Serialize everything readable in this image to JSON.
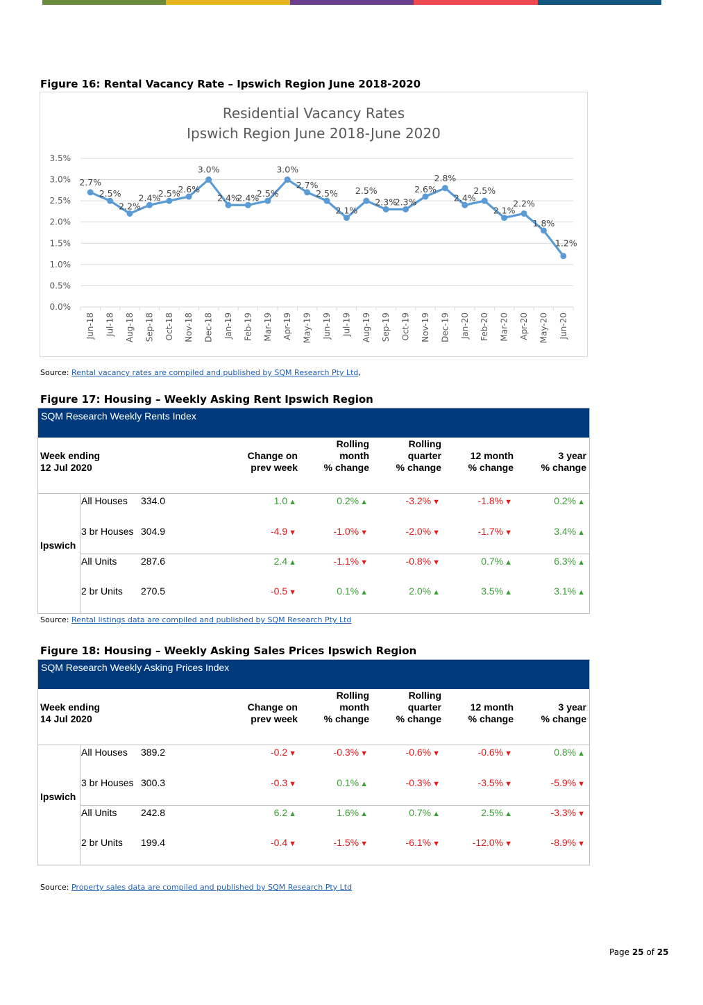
{
  "colors": {
    "topbar": [
      "#6b8a3a",
      "#e7b51e",
      "#6a3f8c",
      "#ef4a4f",
      "#11577f"
    ],
    "line": "#5b9bd5",
    "header_blue": "#003a7d",
    "up": "#3aa035",
    "down": "#e01b1b"
  },
  "figure16": {
    "caption": "Figure 16: Rental Vacancy Rate – Ipswich Region June 2018-2020",
    "source_prefix": "Source: ",
    "source_link": "Rental vacancy rates are compiled and published by SQM Research Pty Ltd",
    "source_suffix": ","
  },
  "chart_data": {
    "type": "line",
    "title": "Residential Vacancy Rates",
    "subtitle": "Ipswich Region June 2018-June 2020",
    "xlabel": "",
    "ylabel": "",
    "ylim": [
      0,
      3.5
    ],
    "yticks": [
      "0.0%",
      "0.5%",
      "1.0%",
      "1.5%",
      "2.0%",
      "2.5%",
      "3.0%",
      "3.5%"
    ],
    "grid": true,
    "categories": [
      "Jun-18",
      "Jul-18",
      "Aug-18",
      "Sep-18",
      "Oct-18",
      "Nov-18",
      "Dec-18",
      "Jan-19",
      "Feb-19",
      "Mar-19",
      "Apr-19",
      "May-19",
      "Jun-19",
      "Jul-19",
      "Aug-19",
      "Sep-19",
      "Oct-19",
      "Nov-19",
      "Dec-19",
      "Jan-20",
      "Feb-20",
      "Mar-20",
      "Apr-20",
      "May-20",
      "Jun-20"
    ],
    "values": [
      2.7,
      2.5,
      2.2,
      2.4,
      2.5,
      2.6,
      3.0,
      2.4,
      2.4,
      2.5,
      3.0,
      2.7,
      2.5,
      2.1,
      2.5,
      2.3,
      2.3,
      2.6,
      2.8,
      2.4,
      2.5,
      2.1,
      2.2,
      1.8,
      1.2
    ],
    "labels": [
      "2.7%",
      "2.5%",
      "2.2%",
      "2.4%",
      "2.5%",
      "2.6%",
      "3.0%",
      "2.4%",
      "2.4%",
      "2.5%",
      "3.0%",
      "2.7%",
      "2.5%",
      "2.1%",
      "2.5%",
      "2.3%",
      "2.3%",
      "2.6%",
      "2.8%",
      "2.4%",
      "2.5%",
      "2.1%",
      "2.2%",
      "1.8%",
      "1.2%"
    ]
  },
  "figure17": {
    "caption": "Figure 17: Housing – Weekly Asking Rent Ipswich Region",
    "table_title": "SQM Research Weekly Rents Index",
    "week_line1": "Week ending",
    "week_line2": "12 Jul 2020",
    "region": "Ipswich",
    "source_prefix": "Source: ",
    "source_link": "Rental listings data are compiled and published by SQM Research Pty Ltd",
    "rows": [
      {
        "name": "All Houses",
        "value": "334.0",
        "cells": [
          {
            "v": "1.0",
            "d": "up"
          },
          {
            "v": "0.2%",
            "d": "up"
          },
          {
            "v": "-3.2%",
            "d": "down"
          },
          {
            "v": "-1.8%",
            "d": "down"
          },
          {
            "v": "0.2%",
            "d": "up"
          }
        ]
      },
      {
        "name": "3 br Houses",
        "value": "304.9",
        "cells": [
          {
            "v": "-4.9",
            "d": "down"
          },
          {
            "v": "-1.0%",
            "d": "down"
          },
          {
            "v": "-2.0%",
            "d": "down"
          },
          {
            "v": "-1.7%",
            "d": "down"
          },
          {
            "v": "3.4%",
            "d": "up"
          }
        ]
      },
      {
        "name": "All Units",
        "value": "287.6",
        "cells": [
          {
            "v": "2.4",
            "d": "up"
          },
          {
            "v": "-1.1%",
            "d": "down"
          },
          {
            "v": "-0.8%",
            "d": "down"
          },
          {
            "v": "0.7%",
            "d": "up"
          },
          {
            "v": "6.3%",
            "d": "up"
          }
        ]
      },
      {
        "name": "2 br Units",
        "value": "270.5",
        "cells": [
          {
            "v": "-0.5",
            "d": "down"
          },
          {
            "v": "0.1%",
            "d": "up"
          },
          {
            "v": "2.0%",
            "d": "up"
          },
          {
            "v": "3.5%",
            "d": "up"
          },
          {
            "v": "3.1%",
            "d": "up"
          }
        ]
      }
    ]
  },
  "figure18": {
    "caption": "Figure 18: Housing – Weekly Asking Sales Prices Ipswich Region",
    "table_title": "SQM Research Weekly Asking Prices Index",
    "week_line1": "Week ending",
    "week_line2": "14 Jul 2020",
    "region": "Ipswich",
    "source_prefix": "Source: ",
    "source_link": "Property sales data are compiled and published by SQM Research Pty Ltd",
    "rows": [
      {
        "name": "All Houses",
        "value": "389.2",
        "cells": [
          {
            "v": "-0.2",
            "d": "down"
          },
          {
            "v": "-0.3%",
            "d": "down"
          },
          {
            "v": "-0.6%",
            "d": "down"
          },
          {
            "v": "-0.6%",
            "d": "down"
          },
          {
            "v": "0.8%",
            "d": "up"
          }
        ]
      },
      {
        "name": "3 br Houses",
        "value": "300.3",
        "cells": [
          {
            "v": "-0.3",
            "d": "down"
          },
          {
            "v": "0.1%",
            "d": "up"
          },
          {
            "v": "-0.3%",
            "d": "down"
          },
          {
            "v": "-3.5%",
            "d": "down"
          },
          {
            "v": "-5.9%",
            "d": "down"
          }
        ]
      },
      {
        "name": "All Units",
        "value": "242.8",
        "cells": [
          {
            "v": "6.2",
            "d": "up"
          },
          {
            "v": "1.6%",
            "d": "up"
          },
          {
            "v": "0.7%",
            "d": "up"
          },
          {
            "v": "2.5%",
            "d": "up"
          },
          {
            "v": "-3.3%",
            "d": "down"
          }
        ]
      },
      {
        "name": "2 br Units",
        "value": "199.4",
        "cells": [
          {
            "v": "-0.4",
            "d": "down"
          },
          {
            "v": "-1.5%",
            "d": "down"
          },
          {
            "v": "-6.1%",
            "d": "down"
          },
          {
            "v": "-12.0%",
            "d": "down"
          },
          {
            "v": "-8.9%",
            "d": "down"
          }
        ]
      }
    ]
  },
  "table_columns": [
    [
      "Change on",
      "prev week"
    ],
    [
      "Rolling",
      "month",
      "% change"
    ],
    [
      "Rolling",
      "quarter",
      "% change"
    ],
    [
      "12 month",
      "% change"
    ],
    [
      "3 year",
      "% change"
    ]
  ],
  "triangles": {
    "up": "▲",
    "down": "▼"
  },
  "page": {
    "prefix": "Page ",
    "current": "25",
    "of": " of ",
    "total": "25"
  }
}
